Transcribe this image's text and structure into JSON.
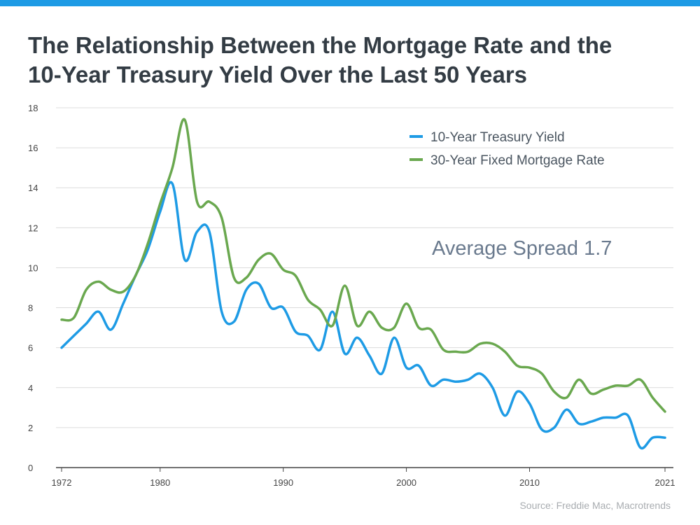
{
  "header": {
    "title_line1": "The Relationship Between the Mortgage Rate and the",
    "title_line2": "10-Year Treasury Yield Over the Last 50 Years"
  },
  "colors": {
    "accent_bar": "#1e9be5",
    "treasury": "#1e9be5",
    "mortgage": "#6aa84f"
  },
  "chart_data": {
    "type": "line",
    "title": "The Relationship Between the Mortgage Rate and the 10-Year Treasury Yield Over the Last 50 Years",
    "xlabel": "",
    "ylabel": "",
    "xlim": [
      1972,
      2021
    ],
    "ylim": [
      0,
      18
    ],
    "x_ticks": [
      "1972",
      "1980",
      "1990",
      "2000",
      "2010",
      "2021"
    ],
    "y_ticks": [
      "0",
      "2",
      "4",
      "6",
      "8",
      "10",
      "12",
      "14",
      "16",
      "18"
    ],
    "grid": true,
    "legend_position": "top-right",
    "x": [
      1972,
      1973,
      1974,
      1975,
      1976,
      1977,
      1978,
      1979,
      1980,
      1981,
      1982,
      1983,
      1984,
      1985,
      1986,
      1987,
      1988,
      1989,
      1990,
      1991,
      1992,
      1993,
      1994,
      1995,
      1996,
      1997,
      1998,
      1999,
      2000,
      2001,
      2002,
      2003,
      2004,
      2005,
      2006,
      2007,
      2008,
      2009,
      2010,
      2011,
      2012,
      2013,
      2014,
      2015,
      2016,
      2017,
      2018,
      2019,
      2020,
      2021
    ],
    "series": [
      {
        "name": "10-Year Treasury Yield",
        "color": "#1e9be5",
        "values": [
          6.0,
          6.6,
          7.2,
          7.8,
          6.9,
          8.2,
          9.6,
          10.9,
          12.8,
          14.2,
          10.4,
          11.8,
          11.8,
          7.8,
          7.3,
          8.9,
          9.2,
          8.0,
          8.0,
          6.8,
          6.6,
          5.9,
          7.8,
          5.7,
          6.5,
          5.6,
          4.7,
          6.5,
          5.0,
          5.1,
          4.1,
          4.4,
          4.3,
          4.4,
          4.7,
          4.0,
          2.6,
          3.8,
          3.2,
          1.9,
          2.0,
          2.9,
          2.2,
          2.3,
          2.5,
          2.5,
          2.6,
          1.0,
          1.5,
          1.5
        ],
        "source_note": ""
      },
      {
        "name": "30-Year Fixed Mortgage Rate",
        "color": "#6aa84f",
        "values": [
          7.4,
          7.5,
          8.9,
          9.3,
          8.9,
          8.8,
          9.6,
          11.2,
          13.2,
          15.0,
          17.4,
          13.3,
          13.3,
          12.5,
          9.5,
          9.5,
          10.4,
          10.7,
          9.9,
          9.6,
          8.4,
          7.9,
          7.1,
          9.1,
          7.1,
          7.8,
          7.0,
          7.0,
          8.2,
          7.0,
          6.9,
          5.9,
          5.8,
          5.8,
          6.2,
          6.2,
          5.8,
          5.1,
          5.0,
          4.7,
          3.8,
          3.5,
          4.4,
          3.7,
          3.9,
          4.1,
          4.1,
          4.4,
          3.5,
          2.8
        ]
      }
    ],
    "annotation": "Average Spread 1.7",
    "source": "Source: Freddie Mac, Macrotrends"
  }
}
